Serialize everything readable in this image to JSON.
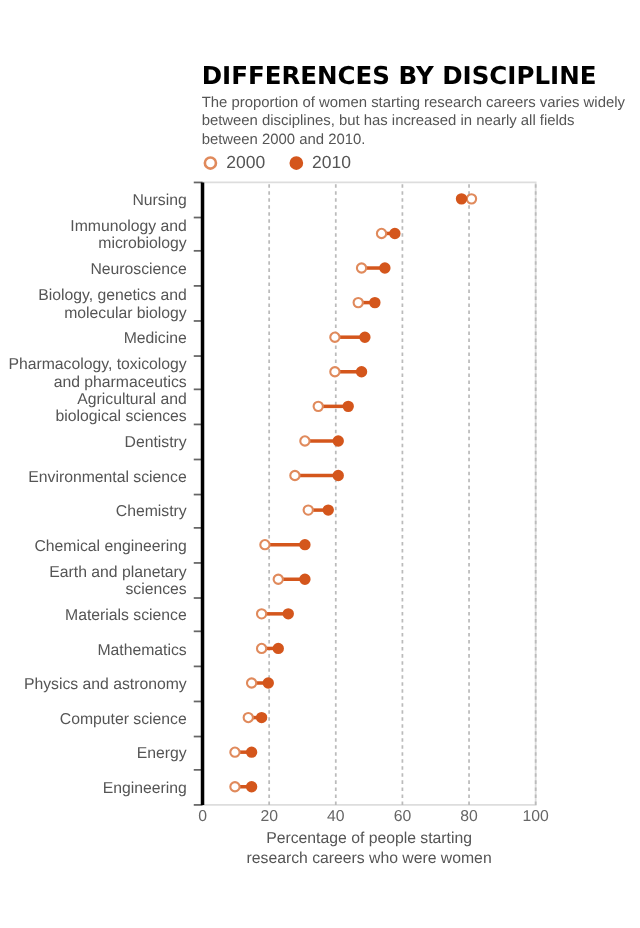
{
  "chart_data": {
    "type": "scatter",
    "orientation": "horizontal",
    "title": "DIFFERENCES BY DISCIPLINE",
    "subtitle": "The proportion of women starting research careers varies widely between disciplines, but has increased in nearly all fields between 2000 and 2010.",
    "xlabel": "Percentage of people starting research careers who were women",
    "categories": [
      "Nursing",
      "Immunology and microbiology",
      "Neuroscience",
      "Biology, genetics and molecular biology",
      "Medicine",
      "Pharmacology, toxicology and pharmaceutics",
      "Agricultural and biological sciences",
      "Dentistry",
      "Environmental science",
      "Chemistry",
      "Chemical engineering",
      "Earth and planetary sciences",
      "Materials science",
      "Mathematics",
      "Physics and astronomy",
      "Computer science",
      "Energy",
      "Engineering"
    ],
    "series": [
      {
        "name": "2000",
        "color": "#e08a5c",
        "values": [
          81,
          54,
          48,
          47,
          40,
          40,
          35,
          31,
          28,
          32,
          19,
          23,
          18,
          18,
          15,
          14,
          10,
          10
        ]
      },
      {
        "name": "2010",
        "color": "#d4561c",
        "values": [
          78,
          58,
          55,
          52,
          49,
          48,
          44,
          41,
          41,
          38,
          31,
          31,
          26,
          23,
          20,
          18,
          15,
          15
        ]
      }
    ],
    "xlim": [
      0,
      100
    ],
    "xticks": [
      0,
      20,
      40,
      60,
      80,
      100
    ],
    "grid": "x",
    "legend": "top",
    "marker": "circle"
  }
}
